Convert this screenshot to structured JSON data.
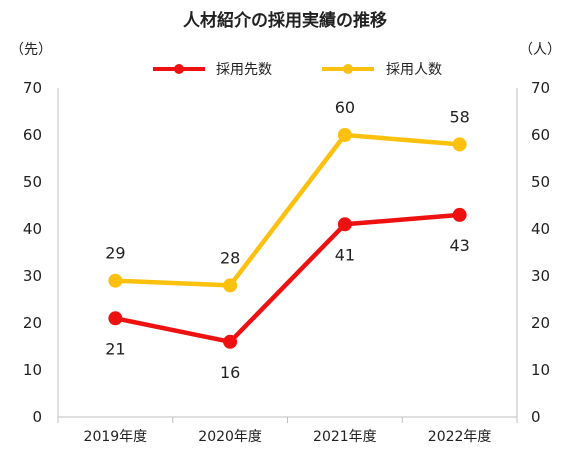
{
  "chart_data": {
    "type": "line",
    "title": "人材紹介の採用実績の推移",
    "left_axis_unit": "（先）",
    "right_axis_unit": "（人）",
    "categories": [
      "2019年度",
      "2020年度",
      "2021年度",
      "2022年度"
    ],
    "ylim": [
      0,
      70
    ],
    "yticks": [
      "0",
      "10",
      "20",
      "30",
      "40",
      "50",
      "60",
      "70"
    ],
    "grid": false,
    "legend_position": "top",
    "series": [
      {
        "name": "採用先数",
        "axis": "left",
        "color": "#ee1111",
        "values": [
          21,
          16,
          41,
          43
        ],
        "labels": [
          "21",
          "16",
          "41",
          "43"
        ],
        "label_side": "below"
      },
      {
        "name": "採用人数",
        "axis": "right",
        "color": "#fcc10e",
        "values": [
          29,
          28,
          60,
          58
        ],
        "labels": [
          "29",
          "28",
          "60",
          "58"
        ],
        "label_side": "above"
      }
    ]
  }
}
